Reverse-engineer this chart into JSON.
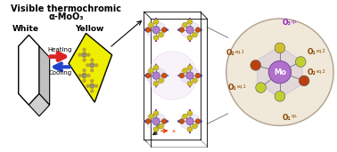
{
  "title_line1": "Visible thermochromic",
  "title_line2": "α-MoO₃",
  "white_label": "White",
  "yellow_label": "Yellow",
  "heating_label": "Heating",
  "cooling_label": "Cooling",
  "bg_color": "#ffffff",
  "title_color": "#000000",
  "heating_arrow_color": "#dd2222",
  "cooling_arrow_color": "#2244cc",
  "circle_bg_color": "#f0e8d8",
  "mo_color": "#b080cc",
  "label_color": "#884400",
  "o3ap_color": "#9020c0",
  "axes_b_color": "#40a040",
  "axes_a_color": "#dd4400",
  "axes_c_color": "#202020",
  "mo_text": "Mo",
  "o3ap_text": "O₃",
  "o3ap_sup": "ap.",
  "o2eq1_text": "O₂",
  "o2eq1_sup": "eq.1",
  "o1eq2_text": "O₁",
  "o1eq2_sup": "eq.2",
  "o1eq1_text": "O₁",
  "o1eq1_sup": "eq.1",
  "o2eq2_text": "O₂",
  "o2eq2_sup": "eq.2",
  "o1ap_text": "O₁",
  "o1ap_sup": "ap."
}
